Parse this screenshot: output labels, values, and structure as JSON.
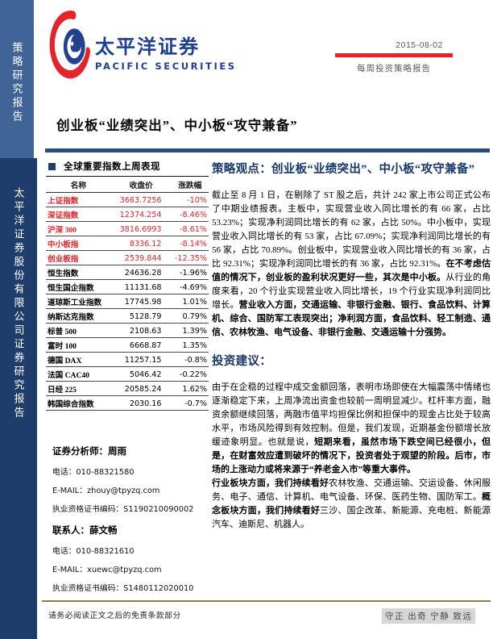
{
  "sidebar": {
    "top_label": "策略研究报告",
    "bottom_label": "太平洋证券股份有限公司证券研究报告"
  },
  "header": {
    "logo_cn": "太平洋证券",
    "logo_en": "PACIFIC SECURITIES",
    "date": "2015-08-02",
    "report_type": "每周投资策略报告"
  },
  "doc_title": "创业板“业绩突出”、中小板“攻守兼备”",
  "index_table": {
    "section_title": "全球重要指数上周表现",
    "columns": [
      "名称",
      "收盘价",
      "涨跌幅"
    ],
    "rows": [
      {
        "name": "上证指数",
        "close": "3663.7256",
        "change": "-10%",
        "highlight": true
      },
      {
        "name": "深证指数",
        "close": "12374.254",
        "change": "-8.46%",
        "highlight": true
      },
      {
        "name": "沪深 300",
        "close": "3816.6993",
        "change": "-8.61%",
        "highlight": true
      },
      {
        "name": "中小板指",
        "close": "8336.12",
        "change": "-8.14%",
        "highlight": true
      },
      {
        "name": "创业板指",
        "close": "2539.844",
        "change": "-12.35%",
        "highlight": true
      },
      {
        "name": "恒生指数",
        "close": "24636.28",
        "change": "-1.96%",
        "highlight": false
      },
      {
        "name": "恒生国企指数",
        "close": "11131.68",
        "change": "-4.69%",
        "highlight": false
      },
      {
        "name": "道琼斯工业指数",
        "close": "17745.98",
        "change": "1.01%",
        "highlight": false
      },
      {
        "name": "纳斯达克指数",
        "close": "5128.79",
        "change": "0.79%",
        "highlight": false
      },
      {
        "name": "标普 500",
        "close": "2108.63",
        "change": "1.39%",
        "highlight": false
      },
      {
        "name": "富时 100",
        "close": "6668.87",
        "change": "1.35%",
        "highlight": false
      },
      {
        "name": "德国 DAX",
        "close": "11257.15",
        "change": "-0.8%",
        "highlight": false
      },
      {
        "name": "法国 CAC40",
        "close": "5046.42",
        "change": "-0.22%",
        "highlight": false
      },
      {
        "name": "日经 225",
        "close": "20585.24",
        "change": "1.62%",
        "highlight": false
      },
      {
        "name": "韩国综合指数",
        "close": "2030.16",
        "change": "-0.7%",
        "highlight": false
      }
    ]
  },
  "analysts": {
    "analyst_title": "证券分析师：周雨",
    "analyst_phone": "电话：010-88321580",
    "analyst_email": "E-MAIL：zhouy@tpyzq.com",
    "analyst_cert": "执业资格证书编码：S1190210090002",
    "contact_title": "联系人：薛文畅",
    "contact_phone": "电话：010-88321610",
    "contact_email": "E-MAIL：xuewc@tpyzq.com",
    "contact_cert": "执业资格证书编码：S1480112020010"
  },
  "strategy_view": {
    "heading": "策略观点：创业板“业绩突出”、中小板“攻守兼备”",
    "paragraph1": [
      {
        "text": "截止至 8 月 1 日，在剔除了 ST 股之后，共计 242 家上市公司正式公布了中期业绩报表。主板中，实现营业收入同比增长的有 66 家，占比 53.23%；实现净利润同比增长的有 62 家，占比 50%。中小板中，实现营业收入同比增长的有 53 家，占比 67.09%；实现净利润同比增长的有 56 家，占比 70.89%。创业板中，实现营业收入同比增长的有 36 家，占比 92.31%；实现净利润同比增长的有 36 家，占比 92.31%。",
        "bold": false
      },
      {
        "text": "在不考虑估值的情况下，创业板的盈利状况更好一些，其次是中小板。",
        "bold": true
      },
      {
        "text": "从行业的角度来看，20 个行业实现营业收入同比增长，19 个行业实现净利润同比增长。",
        "bold": false
      },
      {
        "text": "营业收入方面，交通运输、非银行金融、银行、食品饮料、计算机、综合、国防军工表现突出；净利润方面，食品饮料、轻工制造、通信、农林牧渔、电气设备、非银行金融、交通运输十分强势。",
        "bold": true
      }
    ]
  },
  "investment_advice": {
    "heading": "投资建议：",
    "paragraph1": [
      {
        "text": "由于在企稳的过程中成交金额回落，表明市场即使在大幅震荡中情绪也逐渐稳定下来，上周净流出资金也较前一周明显减少。杠杆率方面，融资余额继续回落，两融市值平均担保比例和担保中的现金占比处于较高水平，市场风险得到有效控制。但是，我们发现，近期基金份额增长放缓迹象明显。也就是说，",
        "bold": false
      },
      {
        "text": "短期来看，虽然市场下跌空间已经很小，但是，在财富效应遭到破坏的情况下，投资者处于观望的阶段。后市，市场的上涨动力或将来源于“养老金入市”等重大事件。",
        "bold": true
      }
    ],
    "paragraph2": [
      {
        "text": "行业板块方面，我们持续看好",
        "bold": true
      },
      {
        "text": "农林牧渔、交通运输、交运设备、休闲服务、电子、通信、计算机、电气设备、环保、医药生物、国防军工。",
        "bold": false
      },
      {
        "text": "概念板块方面，我们持续看好",
        "bold": true
      },
      {
        "text": "三沙、国企改革、新能源、充电桩、新能源汽车、迪斯尼、机器人。",
        "bold": false
      }
    ]
  },
  "footer": {
    "disclaimer": "请务必阅读正文之后的免责条款部分",
    "motto": "守正 出奇 宁静 致远"
  },
  "colors": {
    "accent_red": "#e42328",
    "header_bar_red": "#ee2027",
    "navy_heading": "#17376b",
    "sidebar_top_bg": "#3f6497",
    "sidebar_bottom_bg": "#1e3d6b",
    "title_rule_navy": "#2a4b7d",
    "footer_line_gold": "#8e7d3b",
    "logo_blue": "#1c3f94"
  }
}
